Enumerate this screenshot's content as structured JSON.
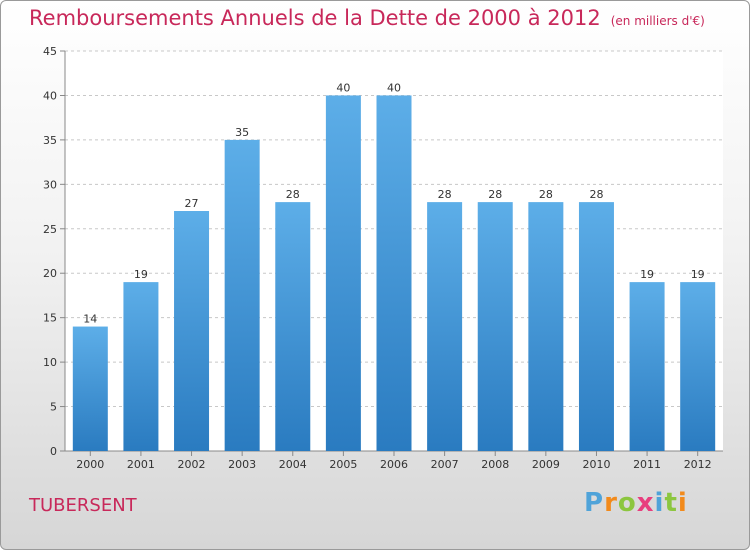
{
  "title": "Remboursements Annuels de la Dette de 2000 à 2012",
  "unit_note": "(en milliers d'€)",
  "commune": "TUBERSENT",
  "brand": {
    "text": "Proxiti",
    "letters": [
      {
        "ch": "P",
        "color": "#4fa3d9"
      },
      {
        "ch": "r",
        "color": "#f28a1b"
      },
      {
        "ch": "o",
        "color": "#8cc63f"
      },
      {
        "ch": "x",
        "color": "#e83e7e"
      },
      {
        "ch": "i",
        "color": "#4fa3d9"
      },
      {
        "ch": "t",
        "color": "#8cc63f"
      },
      {
        "ch": "i",
        "color": "#f28a1b"
      }
    ]
  },
  "colors": {
    "title": "#c8285a",
    "bar_top": "#5daee8",
    "bar_bottom": "#2a7bc0"
  },
  "chart_data": {
    "type": "bar",
    "title": "Remboursements Annuels de la Dette de 2000 à 2012",
    "xlabel": "",
    "ylabel": "",
    "categories": [
      "2000",
      "2001",
      "2002",
      "2003",
      "2004",
      "2005",
      "2006",
      "2007",
      "2008",
      "2009",
      "2010",
      "2011",
      "2012"
    ],
    "values": [
      14,
      19,
      27,
      35,
      28,
      40,
      40,
      28,
      28,
      28,
      28,
      19,
      19
    ],
    "ylim": [
      0,
      45
    ],
    "yticks": [
      0,
      5,
      10,
      15,
      20,
      25,
      30,
      35,
      40,
      45
    ],
    "grid": true,
    "data_labels": true
  }
}
